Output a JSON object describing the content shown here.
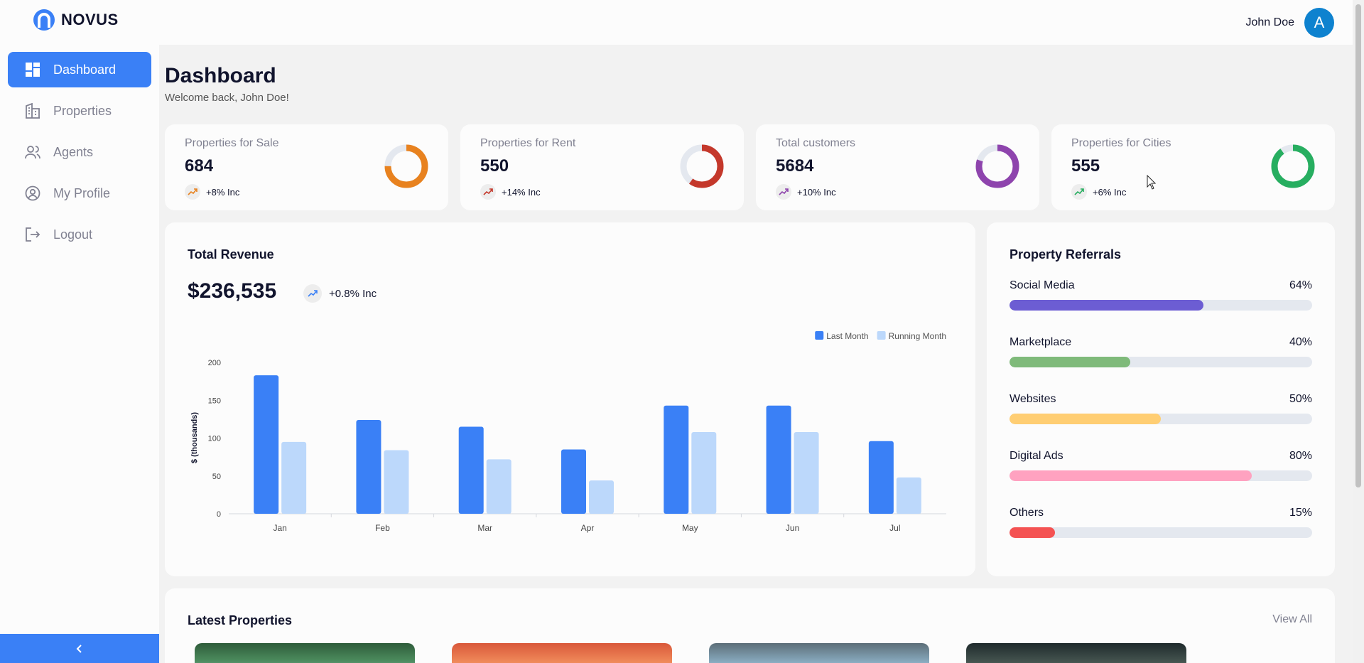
{
  "app": {
    "brand": "NOVUS"
  },
  "header": {
    "user_name": "John Doe",
    "avatar_letter": "A"
  },
  "sidebar": {
    "items": [
      {
        "label": "Dashboard",
        "icon": "dashboard-icon",
        "active": true
      },
      {
        "label": "Properties",
        "icon": "building-icon"
      },
      {
        "label": "Agents",
        "icon": "people-icon"
      },
      {
        "label": "My Profile",
        "icon": "user-circle-icon"
      },
      {
        "label": "Logout",
        "icon": "logout-icon"
      }
    ],
    "collapse_icon": "chevron-left-icon"
  },
  "page": {
    "title": "Dashboard",
    "subtitle": "Welcome back, John Doe!"
  },
  "stats": [
    {
      "label": "Properties for Sale",
      "value": "684",
      "change": "+8% Inc",
      "color": "#e8821f",
      "fraction": 0.75
    },
    {
      "label": "Properties for Rent",
      "value": "550",
      "change": "+14% Inc",
      "color": "#c4382b",
      "fraction": 0.6
    },
    {
      "label": "Total customers",
      "value": "5684",
      "change": "+10% Inc",
      "color": "#8e44ad",
      "fraction": 0.8
    },
    {
      "label": "Properties for Cities",
      "value": "555",
      "change": "+6% Inc",
      "color": "#27ae60",
      "fraction": 0.9
    }
  ],
  "revenue": {
    "title": "Total Revenue",
    "value": "$236,535",
    "change": "+0.8% Inc"
  },
  "chart_data": {
    "type": "bar",
    "categories": [
      "Jan",
      "Feb",
      "Mar",
      "Apr",
      "May",
      "Jun",
      "Jul"
    ],
    "series": [
      {
        "name": "Last Month",
        "color": "#3a80f6",
        "values": [
          183,
          124,
          115,
          85,
          143,
          143,
          96
        ]
      },
      {
        "name": "Running Month",
        "color": "#bcd8fb",
        "values": [
          95,
          84,
          72,
          44,
          108,
          108,
          48
        ]
      }
    ],
    "ylabel": "$ (thousands)",
    "yticks": [
      0,
      50,
      100,
      150,
      200
    ],
    "ylim": [
      0,
      200
    ],
    "legend": "top-right",
    "grid": false
  },
  "referrals": {
    "title": "Property Referrals",
    "items": [
      {
        "name": "Social Media",
        "percent": "64%",
        "value": 64,
        "color": "#6c5dd3"
      },
      {
        "name": "Marketplace",
        "percent": "40%",
        "value": 40,
        "color": "#7fba7a"
      },
      {
        "name": "Websites",
        "percent": "50%",
        "value": 50,
        "color": "#ffce73"
      },
      {
        "name": "Digital Ads",
        "percent": "80%",
        "value": 80,
        "color": "#ffa2c0"
      },
      {
        "name": "Others",
        "percent": "15%",
        "value": 15,
        "color": "#f45252"
      }
    ]
  },
  "latest": {
    "title": "Latest Properties",
    "view_all": "View All"
  }
}
